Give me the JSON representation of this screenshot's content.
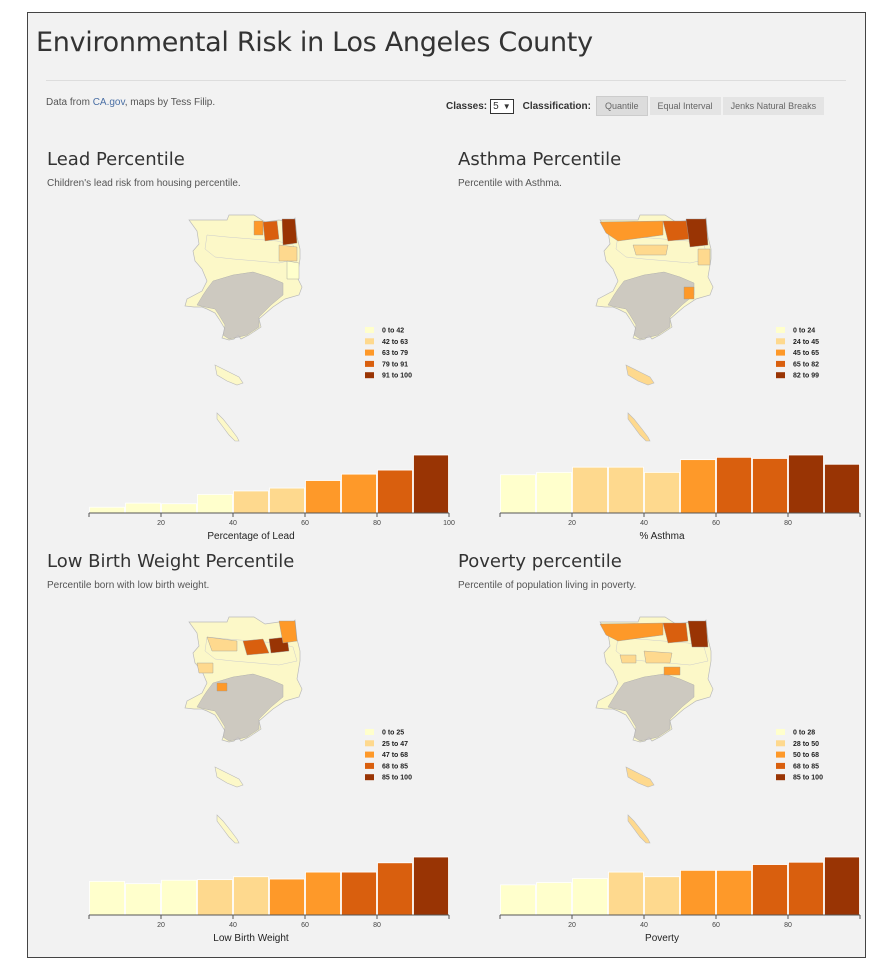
{
  "page": {
    "title": "Environmental Risk in Los Angeles County",
    "credit_prefix": "Data from ",
    "credit_link": "CA.gov",
    "credit_suffix": ", maps by Tess Filip."
  },
  "controls": {
    "classes_label": "Classes:",
    "classes_value": "5",
    "classification_label": "Classification:",
    "options": [
      "Quantile",
      "Equal Interval",
      "Jenks Natural Breaks"
    ],
    "selected": "Quantile"
  },
  "colors": {
    "classes": [
      "#ffffcc",
      "#fed98e",
      "#fe9929",
      "#d95f0e",
      "#993404"
    ],
    "map_base": "#fcf8c8",
    "urban": "#c8c4c0"
  },
  "chart_data": [
    {
      "type": "bar",
      "title": "Lead Percentile",
      "subtitle": "Children's lead risk from housing percentile.",
      "xlabel": "Percentage of Lead",
      "xlim": [
        0,
        100
      ],
      "xticks": [
        "20",
        "40",
        "60",
        "80",
        "100"
      ],
      "bins": [
        [
          0,
          10
        ],
        [
          10,
          20
        ],
        [
          20,
          30
        ],
        [
          30,
          40
        ],
        [
          40,
          50
        ],
        [
          50,
          60
        ],
        [
          60,
          70
        ],
        [
          70,
          80
        ],
        [
          80,
          90
        ],
        [
          90,
          100
        ]
      ],
      "values": [
        10,
        17,
        16,
        32,
        38,
        43,
        56,
        67,
        74,
        100
      ],
      "bin_colors": [
        0,
        0,
        0,
        0,
        1,
        1,
        2,
        2,
        3,
        4
      ],
      "legend": [
        "0 to 42",
        "42 to 63",
        "63 to 79",
        "79 to 91",
        "91 to 100"
      ],
      "map_variant": 0
    },
    {
      "type": "bar",
      "title": "Asthma Percentile",
      "subtitle": "Percentile with Asthma.",
      "xlabel": "% Asthma",
      "xlim": [
        0,
        100
      ],
      "xticks": [
        "20",
        "40",
        "60",
        "80"
      ],
      "bins": [
        [
          0,
          10
        ],
        [
          10,
          20
        ],
        [
          20,
          30
        ],
        [
          30,
          40
        ],
        [
          40,
          50
        ],
        [
          50,
          60
        ],
        [
          60,
          70
        ],
        [
          70,
          80
        ],
        [
          80,
          90
        ],
        [
          90,
          100
        ]
      ],
      "values": [
        66,
        70,
        79,
        79,
        70,
        92,
        96,
        94,
        100,
        84
      ],
      "bin_colors": [
        0,
        0,
        1,
        1,
        1,
        2,
        3,
        3,
        4,
        4
      ],
      "legend": [
        "0 to 24",
        "24 to 45",
        "45 to 65",
        "65 to 82",
        "82 to 99"
      ],
      "map_variant": 1
    },
    {
      "type": "bar",
      "title": "Low Birth Weight Percentile",
      "subtitle": "Percentile born with low birth weight.",
      "xlabel": "Low Birth Weight",
      "xlim": [
        0,
        100
      ],
      "xticks": [
        "20",
        "40",
        "60",
        "80"
      ],
      "bins": [
        [
          0,
          10
        ],
        [
          10,
          20
        ],
        [
          20,
          30
        ],
        [
          30,
          40
        ],
        [
          40,
          50
        ],
        [
          50,
          60
        ],
        [
          60,
          70
        ],
        [
          70,
          80
        ],
        [
          80,
          90
        ],
        [
          90,
          100
        ]
      ],
      "values": [
        58,
        54,
        60,
        61,
        66,
        62,
        74,
        74,
        90,
        100
      ],
      "bin_colors": [
        0,
        0,
        0,
        1,
        1,
        2,
        2,
        3,
        3,
        4
      ],
      "legend": [
        "0 to 25",
        "25 to 47",
        "47 to 68",
        "68 to 85",
        "85 to 100"
      ],
      "map_variant": 2
    },
    {
      "type": "bar",
      "title": "Poverty percentile",
      "subtitle": "Percentile of population living in poverty.",
      "xlabel": "Poverty",
      "xlim": [
        0,
        100
      ],
      "xticks": [
        "20",
        "40",
        "60",
        "80"
      ],
      "bins": [
        [
          0,
          10
        ],
        [
          10,
          20
        ],
        [
          20,
          30
        ],
        [
          30,
          40
        ],
        [
          40,
          50
        ],
        [
          50,
          60
        ],
        [
          60,
          70
        ],
        [
          70,
          80
        ],
        [
          80,
          90
        ],
        [
          90,
          100
        ]
      ],
      "values": [
        52,
        56,
        63,
        74,
        66,
        77,
        77,
        87,
        91,
        100
      ],
      "bin_colors": [
        0,
        0,
        0,
        1,
        1,
        2,
        2,
        3,
        3,
        4
      ],
      "legend": [
        "0 to 28",
        "28 to 50",
        "50 to 68",
        "68 to 85",
        "85 to 100"
      ],
      "map_variant": 3
    }
  ]
}
